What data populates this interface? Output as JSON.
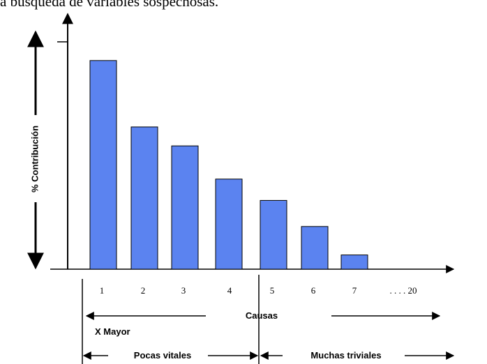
{
  "caption": "a búsqueda de variables sospechosas.",
  "chart_data": {
    "type": "bar",
    "ylabel": "% Contribución",
    "xlabel": "Causas",
    "categories": [
      "1",
      "2",
      "3",
      "4",
      "5",
      "6",
      "7"
    ],
    "values": [
      88,
      60,
      52,
      38,
      29,
      18,
      6
    ],
    "ylim": [
      0,
      100
    ],
    "extra_tick_label": ". . . . 20",
    "annotations": {
      "major": "X Mayor",
      "vital_few": "Pocas vitales",
      "trivial_many": "Muchas triviales"
    },
    "bar_color": "#5b83f0",
    "bar_edge": "#000000"
  }
}
